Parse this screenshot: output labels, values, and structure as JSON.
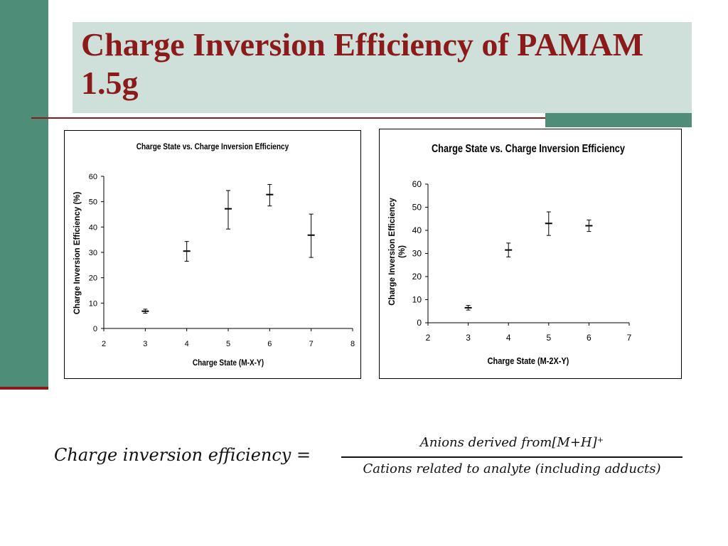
{
  "slide": {
    "title": "Charge Inversion Efficiency of PAMAM 1.5g"
  },
  "formula": {
    "lhs": "Charge inversion efficiency =",
    "numerator": "Anions derived from[M+H]⁺",
    "denominator": "Cations related to analyte (including adducts)"
  },
  "chart_data": [
    {
      "type": "scatter",
      "title": "Charge State vs. Charge Inversion Efficiency",
      "xlabel": "Charge State (M-X-Y)",
      "ylabel": "Charge Inversion Efficiency (%)",
      "xlim": [
        2,
        8
      ],
      "ylim": [
        0,
        60
      ],
      "xticks": [
        "2",
        "3",
        "4",
        "5",
        "6",
        "7",
        "8"
      ],
      "yticks": [
        "0",
        "10",
        "20",
        "30",
        "40",
        "50",
        "60"
      ],
      "grid": false,
      "points": [
        {
          "x": 3,
          "y": 6.8,
          "err_low": 0.8,
          "err_high": 0.8
        },
        {
          "x": 4,
          "y": 30.5,
          "err_low": 4.0,
          "err_high": 3.8
        },
        {
          "x": 5,
          "y": 47.2,
          "err_low": 8.0,
          "err_high": 7.2
        },
        {
          "x": 6,
          "y": 52.8,
          "err_low": 4.5,
          "err_high": 4.0
        },
        {
          "x": 7,
          "y": 36.8,
          "err_low": 8.8,
          "err_high": 8.3
        }
      ]
    },
    {
      "type": "scatter",
      "title": "Charge State vs. Charge Inversion Efficiency",
      "xlabel": "Charge State (M-2X-Y)",
      "ylabel": "Charge Inversion Efficiency (%)",
      "xlim": [
        2,
        7
      ],
      "ylim": [
        0,
        60
      ],
      "xticks": [
        "2",
        "3",
        "4",
        "5",
        "6",
        "7"
      ],
      "yticks": [
        "0",
        "10",
        "20",
        "30",
        "40",
        "50",
        "60"
      ],
      "grid": false,
      "points": [
        {
          "x": 3,
          "y": 6.5,
          "err_low": 1.0,
          "err_high": 1.0
        },
        {
          "x": 4,
          "y": 31.5,
          "err_low": 3.0,
          "err_high": 3.0
        },
        {
          "x": 5,
          "y": 43.0,
          "err_low": 5.2,
          "err_high": 5.0
        },
        {
          "x": 6,
          "y": 42.0,
          "err_low": 2.5,
          "err_high": 2.5
        }
      ]
    }
  ]
}
